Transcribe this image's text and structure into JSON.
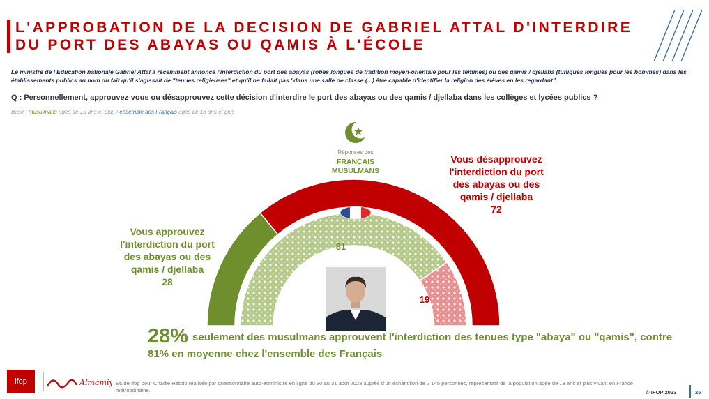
{
  "title": {
    "line1": "L'APPROBATION DE LA DECISION DE GABRIEL ATTAL D'INTERDIRE",
    "line2": "DU PORT DES ABAYAS OU QAMIS À L'ÉCOLE"
  },
  "intro": "Le ministre de l'Education nationale Gabriel Attal a récemment annoncé l'interdiction du port des abayas (robes longues de tradition moyen-orientale pour les femmes) ou des qamis / djellaba (tuniques longues pour les hommes) dans les établissements publics au nom du fait qu'il s'agissait de \"tenues religieuses\" et qu'il ne fallait pas \"dans une salle de classe (...) être capable d'identifier la religion des élèves en les regardant\".",
  "question": "Q : Personnellement, approuvez-vous ou désapprouvez cette décision d'interdire le port des abayas ou des qamis / djellaba dans les collèges et lycées publics ?",
  "base": {
    "prefix": "Base : ",
    "group1": "musulmans",
    "mid": " âgés de 15 ans et plus / ",
    "group2": "ensemble des Français",
    "suffix": " âgés de 18 ans et plus"
  },
  "legend": {
    "responses_small": "Réponses des",
    "responses_line1": "FRANÇAIS",
    "responses_line2": "MUSULMANS"
  },
  "labels": {
    "approve_lines": [
      "Vous approuvez",
      "l'interdiction du port",
      "des abayas ou des",
      "qamis / djellaba"
    ],
    "approve_value": "28",
    "disapprove_lines": [
      "Vous désapprouvez",
      "l'interdiction du port",
      "des abayas ou des",
      "qamis / djellaba"
    ],
    "disapprove_value": "72",
    "inner_approve": "81",
    "inner_disapprove": "19"
  },
  "conclusion": {
    "pct": "28%",
    "text": "seulement des musulmans approuvent l'interdiction des tenues type \"abaya\" ou \"qamis\", contre 81% en moyenne chez l'ensemble des Français"
  },
  "footer": {
    "ifop_logo": "ifop",
    "almanar_logo": "Almamiya TV",
    "note": "Etude Ifop pour Charlie Hebdo réalisée par questionnaire auto-administré en ligne du 30 au 31 août 2023 auprès d'un échantillon de 2 145 personnes, représentatif de la population âgée de 18 ans et plus vivant en France métropolitaine.",
    "copyright": "© IFOP 2023",
    "page": "25"
  },
  "colors": {
    "red": "#c00000",
    "green": "#6f8f2f",
    "light_green": "#b5c98a",
    "light_red": "#e88f8f"
  },
  "icons": [
    "crescent-star-icon",
    "french-flag-icon"
  ],
  "chart_data": [
    {
      "type": "pie",
      "series_group": "musulmans",
      "categories": [
        "Vous approuvez",
        "Vous désapprouvez"
      ],
      "values": [
        28,
        72
      ]
    },
    {
      "type": "pie",
      "series_group": "ensemble des Français",
      "categories": [
        "Vous approuvez",
        "Vous désapprouvez"
      ],
      "values": [
        81,
        19
      ]
    }
  ]
}
